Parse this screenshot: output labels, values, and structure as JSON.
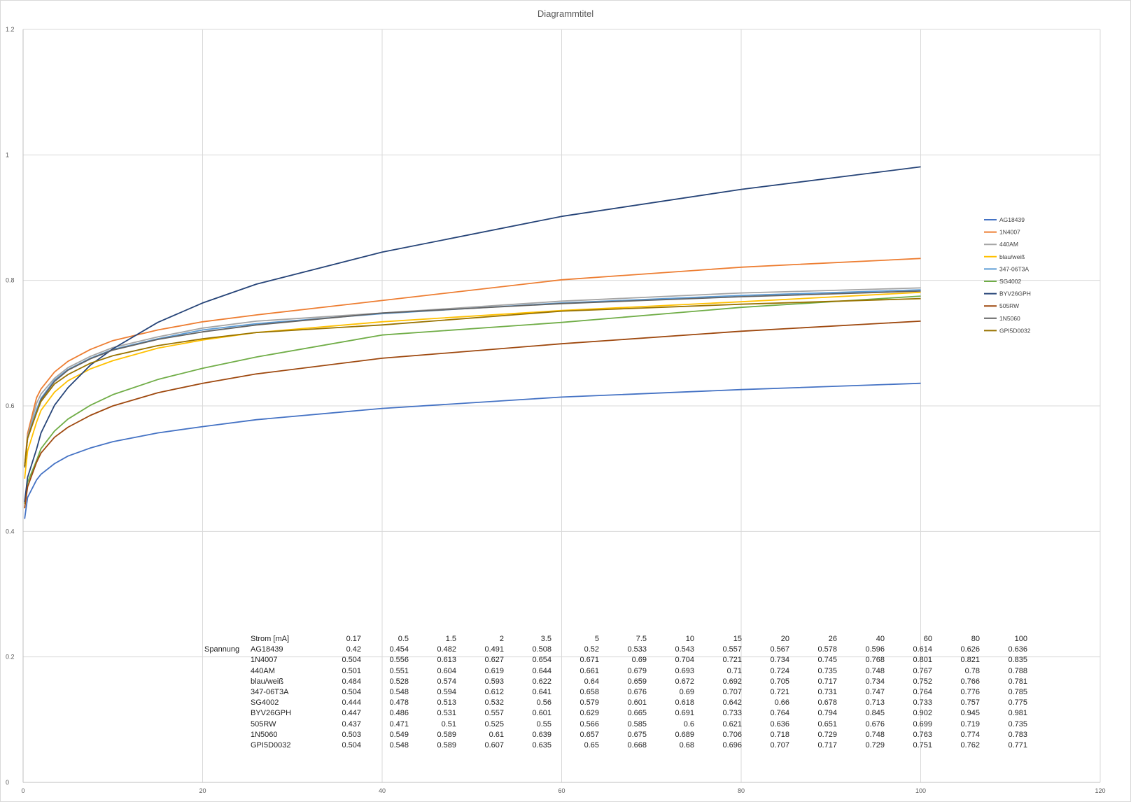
{
  "colors": {
    "AG18439": "#4472c4",
    "1N4007": "#ed7d31",
    "440AM": "#a5a5a5",
    "blau/weiß": "#ffc000",
    "347-06T3A": "#5b9bd5",
    "SG4002": "#70ad47",
    "BYV26GPH": "#264478",
    "505RW": "#9e480e",
    "1N5060": "#636363",
    "GPI5D0032": "#997300"
  },
  "chart_data": {
    "type": "line",
    "title": "Diagrammtitel",
    "xlim": [
      0,
      120
    ],
    "ylim": [
      0,
      1.2
    ],
    "x_ticks": [
      0,
      20,
      40,
      60,
      80,
      100,
      120
    ],
    "y_ticks": [
      0,
      0.2,
      0.4,
      0.6,
      0.8,
      1,
      1.2
    ],
    "grid": true,
    "legend_position": "right",
    "x": [
      0.17,
      0.5,
      1.5,
      2,
      3.5,
      5,
      7.5,
      10,
      15,
      20,
      26,
      40,
      60,
      80,
      100
    ],
    "series": [
      {
        "name": "AG18439",
        "values": [
          0.42,
          0.454,
          0.482,
          0.491,
          0.508,
          0.52,
          0.533,
          0.543,
          0.557,
          0.567,
          0.578,
          0.596,
          0.614,
          0.626,
          0.636
        ]
      },
      {
        "name": "1N4007",
        "values": [
          0.504,
          0.556,
          0.613,
          0.627,
          0.654,
          0.671,
          0.69,
          0.704,
          0.721,
          0.734,
          0.745,
          0.768,
          0.801,
          0.821,
          0.835
        ]
      },
      {
        "name": "440AM",
        "values": [
          0.501,
          0.551,
          0.604,
          0.619,
          0.644,
          0.661,
          0.679,
          0.693,
          0.71,
          0.724,
          0.735,
          0.748,
          0.767,
          0.78,
          0.788
        ]
      },
      {
        "name": "blau/weiß",
        "values": [
          0.484,
          0.528,
          0.574,
          0.593,
          0.622,
          0.64,
          0.659,
          0.672,
          0.692,
          0.705,
          0.717,
          0.734,
          0.752,
          0.766,
          0.781
        ]
      },
      {
        "name": "347-06T3A",
        "values": [
          0.504,
          0.548,
          0.594,
          0.612,
          0.641,
          0.658,
          0.676,
          0.69,
          0.707,
          0.721,
          0.731,
          0.747,
          0.764,
          0.776,
          0.785
        ]
      },
      {
        "name": "SG4002",
        "values": [
          0.444,
          0.478,
          0.513,
          0.532,
          0.56,
          0.579,
          0.601,
          0.618,
          0.642,
          0.66,
          0.678,
          0.713,
          0.733,
          0.757,
          0.775
        ]
      },
      {
        "name": "BYV26GPH",
        "values": [
          0.447,
          0.486,
          0.531,
          0.557,
          0.601,
          0.629,
          0.665,
          0.691,
          0.733,
          0.764,
          0.794,
          0.845,
          0.902,
          0.945,
          0.981
        ]
      },
      {
        "name": "505RW",
        "values": [
          0.437,
          0.471,
          0.51,
          0.525,
          0.55,
          0.566,
          0.585,
          0.6,
          0.621,
          0.636,
          0.651,
          0.676,
          0.699,
          0.719,
          0.735
        ]
      },
      {
        "name": "1N5060",
        "values": [
          0.503,
          0.549,
          0.589,
          0.61,
          0.639,
          0.657,
          0.675,
          0.689,
          0.706,
          0.718,
          0.729,
          0.748,
          0.763,
          0.774,
          0.783
        ]
      },
      {
        "name": "GPI5D0032",
        "values": [
          0.504,
          0.548,
          0.589,
          0.607,
          0.635,
          0.65,
          0.668,
          0.68,
          0.696,
          0.707,
          0.717,
          0.729,
          0.751,
          0.762,
          0.771
        ]
      }
    ]
  },
  "table": {
    "row_label": "Spannung",
    "header_label": "Strom [mA]",
    "header_values": [
      "0.17",
      "0.5",
      "1.5",
      "2",
      "3.5",
      "5",
      "7.5",
      "10",
      "15",
      "20",
      "26",
      "40",
      "60",
      "80",
      "100"
    ],
    "rows": [
      {
        "name": "AG18439",
        "values": [
          "0.42",
          "0.454",
          "0.482",
          "0.491",
          "0.508",
          "0.52",
          "0.533",
          "0.543",
          "0.557",
          "0.567",
          "0.578",
          "0.596",
          "0.614",
          "0.626",
          "0.636"
        ]
      },
      {
        "name": "1N4007",
        "values": [
          "0.504",
          "0.556",
          "0.613",
          "0.627",
          "0.654",
          "0.671",
          "0.69",
          "0.704",
          "0.721",
          "0.734",
          "0.745",
          "0.768",
          "0.801",
          "0.821",
          "0.835"
        ]
      },
      {
        "name": "440AM",
        "values": [
          "0.501",
          "0.551",
          "0.604",
          "0.619",
          "0.644",
          "0.661",
          "0.679",
          "0.693",
          "0.71",
          "0.724",
          "0.735",
          "0.748",
          "0.767",
          "0.78",
          "0.788"
        ]
      },
      {
        "name": "blau/weiß",
        "values": [
          "0.484",
          "0.528",
          "0.574",
          "0.593",
          "0.622",
          "0.64",
          "0.659",
          "0.672",
          "0.692",
          "0.705",
          "0.717",
          "0.734",
          "0.752",
          "0.766",
          "0.781"
        ]
      },
      {
        "name": "347-06T3A",
        "values": [
          "0.504",
          "0.548",
          "0.594",
          "0.612",
          "0.641",
          "0.658",
          "0.676",
          "0.69",
          "0.707",
          "0.721",
          "0.731",
          "0.747",
          "0.764",
          "0.776",
          "0.785"
        ]
      },
      {
        "name": "SG4002",
        "values": [
          "0.444",
          "0.478",
          "0.513",
          "0.532",
          "0.56",
          "0.579",
          "0.601",
          "0.618",
          "0.642",
          "0.66",
          "0.678",
          "0.713",
          "0.733",
          "0.757",
          "0.775"
        ]
      },
      {
        "name": "BYV26GPH",
        "values": [
          "0.447",
          "0.486",
          "0.531",
          "0.557",
          "0.601",
          "0.629",
          "0.665",
          "0.691",
          "0.733",
          "0.764",
          "0.794",
          "0.845",
          "0.902",
          "0.945",
          "0.981"
        ]
      },
      {
        "name": "505RW",
        "values": [
          "0.437",
          "0.471",
          "0.51",
          "0.525",
          "0.55",
          "0.566",
          "0.585",
          "0.6",
          "0.621",
          "0.636",
          "0.651",
          "0.676",
          "0.699",
          "0.719",
          "0.735"
        ]
      },
      {
        "name": "1N5060",
        "values": [
          "0.503",
          "0.549",
          "0.589",
          "0.61",
          "0.639",
          "0.657",
          "0.675",
          "0.689",
          "0.706",
          "0.718",
          "0.729",
          "0.748",
          "0.763",
          "0.774",
          "0.783"
        ]
      },
      {
        "name": "GPI5D0032",
        "values": [
          "0.504",
          "0.548",
          "0.589",
          "0.607",
          "0.635",
          "0.65",
          "0.668",
          "0.68",
          "0.696",
          "0.707",
          "0.717",
          "0.729",
          "0.751",
          "0.762",
          "0.771"
        ]
      }
    ]
  }
}
